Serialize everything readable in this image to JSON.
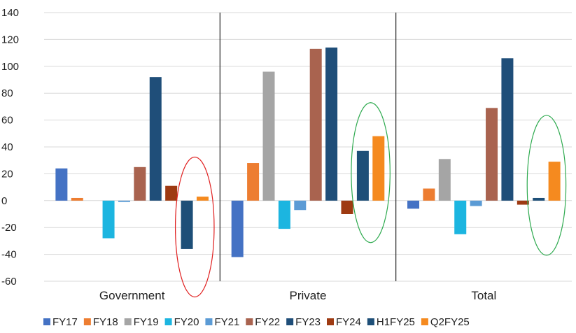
{
  "chart_data": {
    "type": "bar",
    "title": "",
    "xlabel": "",
    "ylabel": "",
    "ylim": [
      -60,
      140
    ],
    "yticks": [
      -60,
      -40,
      -20,
      0,
      20,
      40,
      60,
      80,
      100,
      120,
      140
    ],
    "ytick_labels": [
      "-60",
      "-40",
      "-20",
      "0",
      "20",
      "40",
      "60",
      "80",
      "100",
      "120",
      "140"
    ],
    "grid": true,
    "legend_position": "bottom",
    "categories": [
      "Government",
      "Private",
      "Total"
    ],
    "series": [
      {
        "name": "FY17",
        "color": "#4472C4",
        "values": [
          24,
          -42,
          -6
        ]
      },
      {
        "name": "FY18",
        "color": "#ED7D31",
        "values": [
          2,
          28,
          9
        ]
      },
      {
        "name": "FY19",
        "color": "#A5A5A5",
        "values": [
          0,
          96,
          31
        ]
      },
      {
        "name": "FY20",
        "color": "#1CB5E0",
        "values": [
          -28,
          -21,
          -25
        ]
      },
      {
        "name": "FY21",
        "color": "#5B9BD5",
        "values": [
          -1,
          -7,
          -4
        ]
      },
      {
        "name": "FY22",
        "color": "#A9634F",
        "values": [
          25,
          113,
          69
        ]
      },
      {
        "name": "FY23",
        "color": "#1F4E79",
        "values": [
          92,
          114,
          106
        ]
      },
      {
        "name": "FY24",
        "color": "#9E3A12",
        "values": [
          11,
          -10,
          -3
        ]
      },
      {
        "name": "H1FY25",
        "color": "#1E4F78",
        "values": [
          -36,
          37,
          2
        ]
      },
      {
        "name": "Q2FY25",
        "color": "#F58A1F",
        "values": [
          3,
          48,
          29
        ]
      }
    ],
    "highlights": [
      {
        "category": "Government",
        "color": "#E02020",
        "from_series": "H1FY25",
        "to_series": "Q2FY25"
      },
      {
        "category": "Private",
        "color": "#2EAA4F",
        "from_series": "H1FY25",
        "to_series": "Q2FY25"
      },
      {
        "category": "Total",
        "color": "#2EAA4F",
        "from_series": "H1FY25",
        "to_series": "Q2FY25"
      }
    ]
  }
}
